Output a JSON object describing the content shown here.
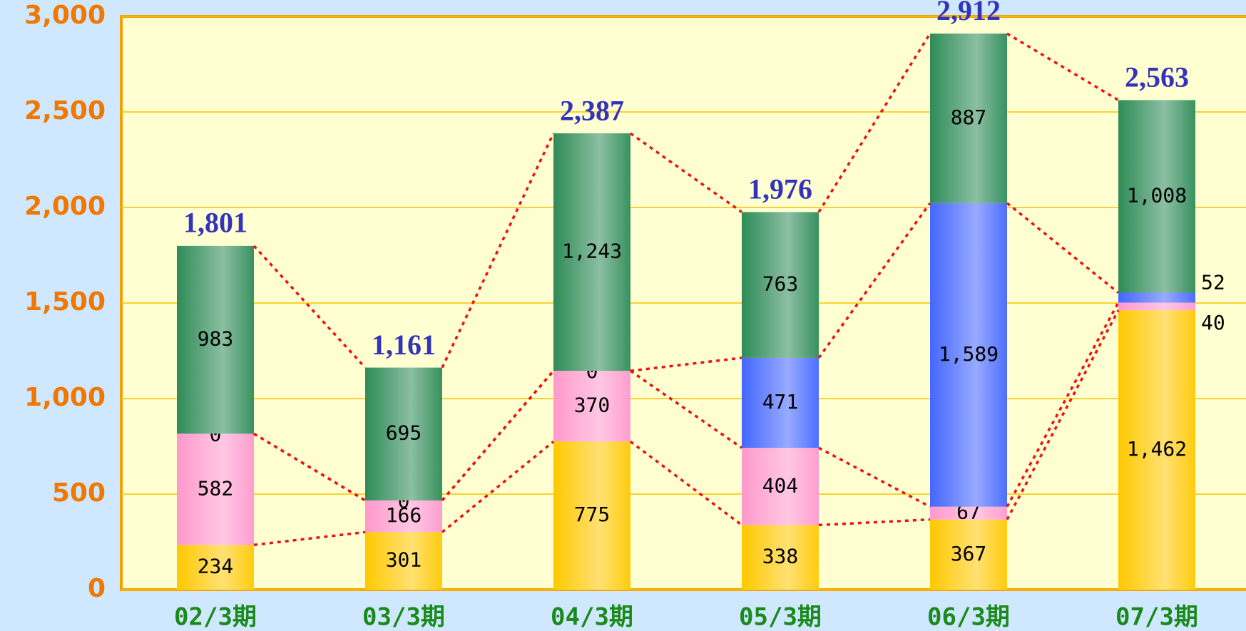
{
  "chart_data": {
    "type": "stacked_bar",
    "categories": [
      "02/3期",
      "03/3期",
      "04/3期",
      "05/3期",
      "06/3期",
      "07/3期"
    ],
    "series": [
      {
        "color": "#ffc800",
        "values": [
          234,
          301,
          775,
          338,
          367,
          1462
        ],
        "value_labels": [
          "234",
          "301",
          "775",
          "338",
          "367",
          "1,462"
        ]
      },
      {
        "color": "#ff99cc",
        "values": [
          582,
          166,
          370,
          404,
          67,
          40
        ]
      },
      {
        "color": "#4466ff",
        "values": [
          0,
          0,
          0,
          471,
          1589,
          52
        ],
        "value_labels": [
          "0",
          "0",
          "0",
          "471",
          "1,589",
          "52"
        ]
      },
      {
        "color": "#2e8b57",
        "values": [
          983,
          695,
          1243,
          763,
          887,
          1008
        ],
        "value_labels": [
          "983",
          "695",
          "1,243",
          "763",
          "887",
          "1,008"
        ]
      }
    ],
    "totals": [
      1801,
      1161,
      2387,
      1976,
      2912,
      2563
    ],
    "total_labels": [
      "1,801",
      "1,161",
      "2,387",
      "1,976",
      "2,912",
      "2,563"
    ],
    "ylim": [
      0,
      3000
    ],
    "yticks": [
      0,
      500,
      {
        "value": 1000,
        "label": "1,000"
      },
      {
        "value": 1500,
        "label": "1,500"
      },
      {
        "value": 2000,
        "label": "2,000"
      },
      {
        "value": 2500,
        "label": "2,500"
      },
      {
        "value": 3000,
        "label": "3,000"
      }
    ],
    "grid": true
  }
}
